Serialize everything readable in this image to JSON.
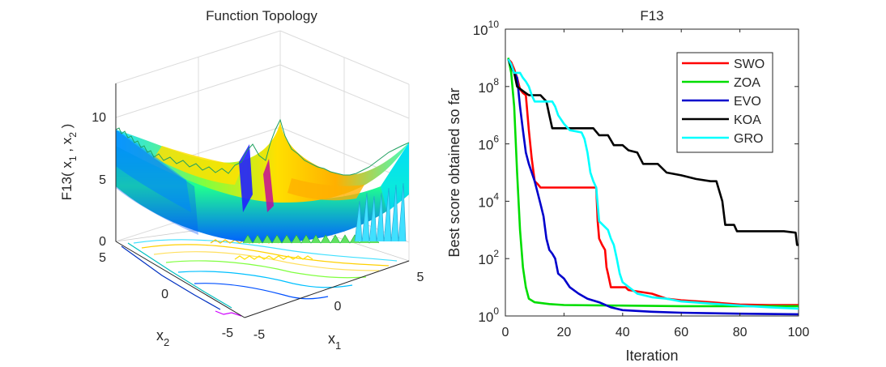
{
  "chart_data": [
    {
      "type": "surface",
      "title": "Function Topology",
      "zlabel": "F13( x",
      "zlabel_sub1": "1",
      "zlabel_mid": " , x",
      "zlabel_sub2": "2",
      "zlabel_end": " )",
      "xlabel": "x",
      "xlabel_sub": "1",
      "ylabel": "x",
      "ylabel_sub": "2",
      "x_ticks": [
        "-5",
        "0",
        "5"
      ],
      "y_ticks": [
        "-5",
        "0",
        "5"
      ],
      "z_ticks": [
        "0",
        "5",
        "10"
      ],
      "xlim": [
        -5,
        5
      ],
      "ylim": [
        -5,
        5
      ],
      "zlim": [
        0,
        12
      ]
    },
    {
      "type": "line",
      "title": "F13",
      "xlabel": "Iteration",
      "ylabel": "Best score obtained so far",
      "yscale": "log",
      "xlim": [
        0,
        100
      ],
      "ylim": [
        1,
        10000000000
      ],
      "x_ticks": [
        "0",
        "20",
        "40",
        "60",
        "80",
        "100"
      ],
      "y_ticks": [
        {
          "base": "10",
          "exp": "0",
          "value": 1
        },
        {
          "base": "10",
          "exp": "2",
          "value": 100
        },
        {
          "base": "10",
          "exp": "4",
          "value": 10000
        },
        {
          "base": "10",
          "exp": "6",
          "value": 1000000
        },
        {
          "base": "10",
          "exp": "8",
          "value": 100000000
        },
        {
          "base": "10",
          "exp": "10",
          "value": 10000000000
        }
      ],
      "legend_position": "top-right",
      "series": [
        {
          "name": "SWO",
          "color": "#ff0000",
          "points": [
            [
              1,
              900000000
            ],
            [
              2,
              700000000
            ],
            [
              3,
              400000000
            ],
            [
              4,
              200000000
            ],
            [
              5,
              80000000
            ],
            [
              6,
              60000000
            ],
            [
              7,
              50000000
            ],
            [
              8,
              3000000
            ],
            [
              9,
              300000
            ],
            [
              10,
              50000
            ],
            [
              11,
              40000
            ],
            [
              12,
              30000
            ],
            [
              20,
              30000
            ],
            [
              30,
              30000
            ],
            [
              31,
              30000
            ],
            [
              31.5,
              2000
            ],
            [
              32,
              500
            ],
            [
              33,
              300
            ],
            [
              34,
              200
            ],
            [
              34.5,
              50
            ],
            [
              35,
              30
            ],
            [
              36,
              10
            ],
            [
              40,
              10
            ],
            [
              41,
              10
            ],
            [
              42,
              8
            ],
            [
              50,
              6
            ],
            [
              55,
              4
            ],
            [
              60,
              3.5
            ],
            [
              70,
              3
            ],
            [
              80,
              2.5
            ],
            [
              90,
              2.4
            ],
            [
              100,
              2.4
            ]
          ]
        },
        {
          "name": "ZOA",
          "color": "#00dd00",
          "points": [
            [
              1,
              1000000000
            ],
            [
              2,
              300000000
            ],
            [
              3,
              20000000
            ],
            [
              4,
              100000
            ],
            [
              5,
              1000
            ],
            [
              6,
              50
            ],
            [
              7,
              10
            ],
            [
              8,
              4
            ],
            [
              10,
              3
            ],
            [
              15,
              2.6
            ],
            [
              20,
              2.4
            ],
            [
              40,
              2.3
            ],
            [
              60,
              2.2
            ],
            [
              80,
              2.2
            ],
            [
              100,
              2.2
            ]
          ]
        },
        {
          "name": "EVO",
          "color": "#0000cc",
          "points": [
            [
              1,
              900000000
            ],
            [
              2,
              500000000
            ],
            [
              3,
              300000000
            ],
            [
              4,
              200000000
            ],
            [
              5,
              20000000
            ],
            [
              6,
              3000000
            ],
            [
              7,
              500000
            ],
            [
              8,
              200000
            ],
            [
              9,
              100000
            ],
            [
              10,
              50000
            ],
            [
              11,
              20000
            ],
            [
              12,
              8000
            ],
            [
              13,
              3000
            ],
            [
              14,
              500
            ],
            [
              15,
              200
            ],
            [
              16,
              150
            ],
            [
              17,
              100
            ],
            [
              18,
              30
            ],
            [
              20,
              20
            ],
            [
              22,
              10
            ],
            [
              25,
              6
            ],
            [
              28,
              4
            ],
            [
              32,
              3
            ],
            [
              36,
              2
            ],
            [
              40,
              1.6
            ],
            [
              50,
              1.4
            ],
            [
              60,
              1.3
            ],
            [
              80,
              1.2
            ],
            [
              100,
              1.15
            ]
          ]
        },
        {
          "name": "KOA",
          "color": "#000000",
          "points": [
            [
              1,
              900000000
            ],
            [
              2,
              500000000
            ],
            [
              3,
              300000000
            ],
            [
              4,
              100000000
            ],
            [
              6,
              70000000
            ],
            [
              8,
              50000000
            ],
            [
              12,
              50000000
            ],
            [
              14,
              30000000
            ],
            [
              15,
              10000000
            ],
            [
              16,
              3500000
            ],
            [
              20,
              3500000
            ],
            [
              25,
              3500000
            ],
            [
              30,
              3500000
            ],
            [
              32,
              2000000
            ],
            [
              35,
              2000000
            ],
            [
              37,
              900000
            ],
            [
              40,
              900000
            ],
            [
              42,
              600000
            ],
            [
              45,
              500000
            ],
            [
              47,
              200000
            ],
            [
              52,
              200000
            ],
            [
              55,
              100000
            ],
            [
              60,
              80000
            ],
            [
              65,
              60000
            ],
            [
              70,
              50000
            ],
            [
              72,
              50000
            ],
            [
              74,
              10000
            ],
            [
              75,
              1500
            ],
            [
              78,
              1500
            ],
            [
              79,
              900
            ],
            [
              90,
              900
            ],
            [
              95,
              900
            ],
            [
              99,
              800
            ],
            [
              99.5,
              300
            ],
            [
              100,
              300
            ]
          ]
        },
        {
          "name": "GRO",
          "color": "#00ffff",
          "points": [
            [
              1,
              900000000
            ],
            [
              2,
              600000000
            ],
            [
              3,
              300000000
            ],
            [
              5,
              300000000
            ],
            [
              6,
              200000000
            ],
            [
              7,
              150000000
            ],
            [
              8,
              100000000
            ],
            [
              9,
              50000000
            ],
            [
              10,
              30000000
            ],
            [
              14,
              30000000
            ],
            [
              16,
              30000000
            ],
            [
              17,
              20000000
            ],
            [
              18,
              10000000
            ],
            [
              20,
              5000000
            ],
            [
              22,
              3000000
            ],
            [
              26,
              2500000
            ],
            [
              27,
              1500000
            ],
            [
              28,
              500000
            ],
            [
              29,
              100000
            ],
            [
              30,
              50000
            ],
            [
              31,
              30000
            ],
            [
              32,
              2000
            ],
            [
              35,
              1000
            ],
            [
              36,
              500
            ],
            [
              37,
              300
            ],
            [
              38,
              100
            ],
            [
              39,
              30
            ],
            [
              40,
              15
            ],
            [
              45,
              6
            ],
            [
              50,
              4.5
            ],
            [
              55,
              4
            ],
            [
              60,
              3.2
            ],
            [
              70,
              2.7
            ],
            [
              80,
              2.3
            ],
            [
              90,
              2.0
            ],
            [
              100,
              1.8
            ]
          ]
        }
      ]
    }
  ]
}
